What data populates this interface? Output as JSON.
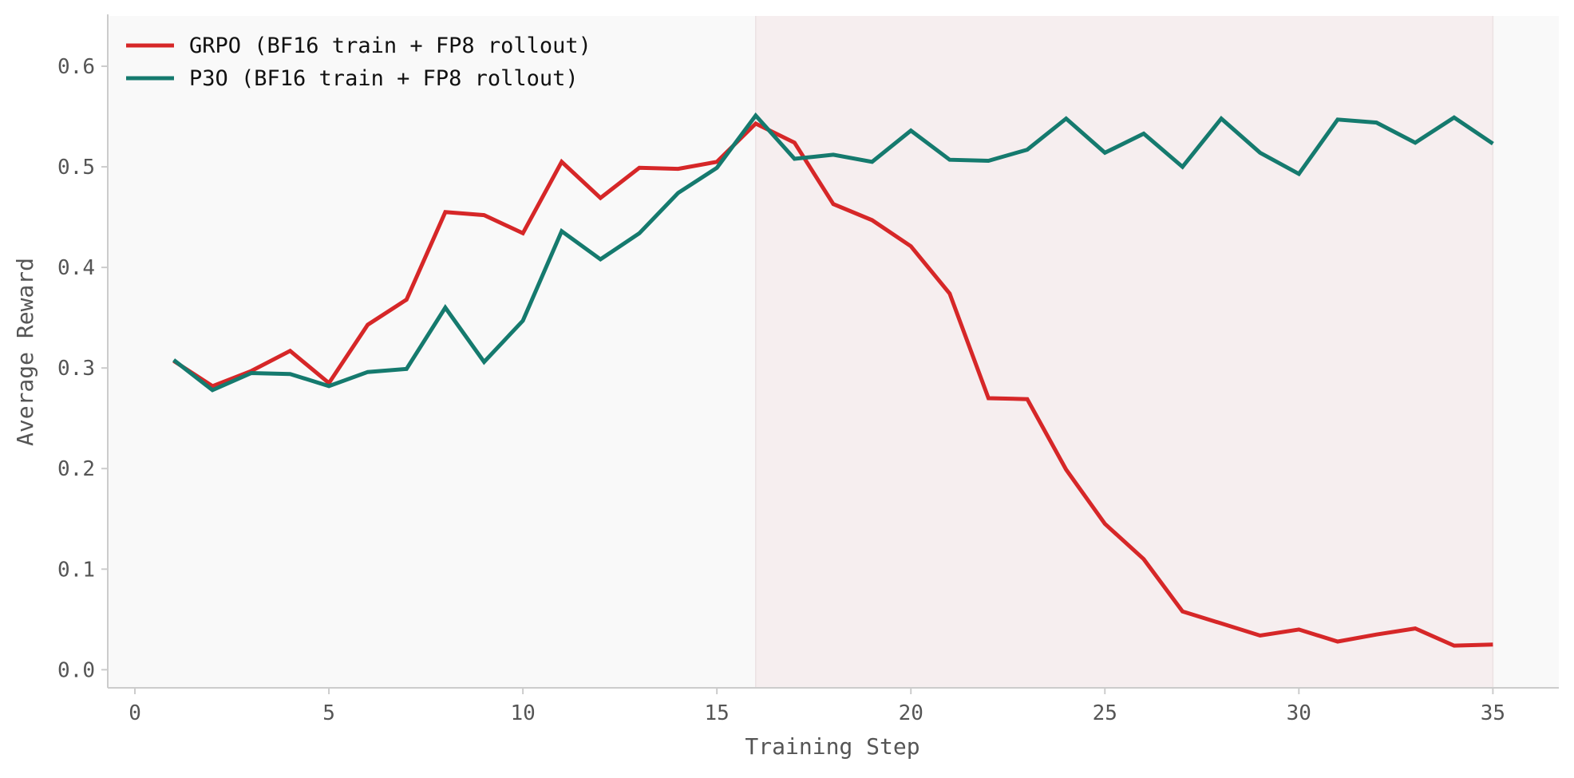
{
  "chart_data": {
    "type": "line",
    "title": "",
    "xlabel": "Training Step",
    "ylabel": "Average Reward",
    "xlim": [
      -0.7,
      36.7
    ],
    "ylim": [
      -0.018,
      0.65
    ],
    "xticks": [
      0,
      5,
      10,
      15,
      20,
      25,
      30,
      35
    ],
    "yticks": [
      0.0,
      0.1,
      0.2,
      0.3,
      0.4,
      0.5,
      0.6
    ],
    "ytick_labels": [
      "0.0",
      "0.1",
      "0.2",
      "0.3",
      "0.4",
      "0.5",
      "0.6"
    ],
    "grid": false,
    "legend_position": "top-left",
    "shaded_region": {
      "x_start": 16,
      "x_end": 35
    },
    "colors": {
      "plot_bg": "#f9f9f9",
      "shaded": "#f6eeef",
      "axis": "#cccccc",
      "tick_text": "#555555"
    },
    "x": [
      1,
      2,
      3,
      4,
      5,
      6,
      7,
      8,
      9,
      10,
      11,
      12,
      13,
      14,
      15,
      16,
      17,
      18,
      19,
      20,
      21,
      22,
      23,
      24,
      25,
      26,
      27,
      28,
      29,
      30,
      31,
      32,
      33,
      34,
      35
    ],
    "series": [
      {
        "name": "GRPO (BF16 train + FP8 rollout)",
        "color": "#d62728",
        "values": [
          0.307,
          0.282,
          0.297,
          0.317,
          0.285,
          0.343,
          0.368,
          0.455,
          0.452,
          0.434,
          0.505,
          0.469,
          0.499,
          0.498,
          0.505,
          0.543,
          0.524,
          0.463,
          0.447,
          0.421,
          0.374,
          0.27,
          0.269,
          0.199,
          0.145,
          0.11,
          0.058,
          0.046,
          0.034,
          0.04,
          0.028,
          0.035,
          0.041,
          0.024,
          0.025
        ]
      },
      {
        "name": "P3O (BF16 train + FP8 rollout)",
        "color": "#157a6e",
        "values": [
          0.308,
          0.278,
          0.295,
          0.294,
          0.282,
          0.296,
          0.299,
          0.36,
          0.306,
          0.347,
          0.436,
          0.408,
          0.434,
          0.474,
          0.499,
          0.551,
          0.508,
          0.512,
          0.505,
          0.536,
          0.507,
          0.506,
          0.517,
          0.548,
          0.514,
          0.533,
          0.5,
          0.548,
          0.514,
          0.493,
          0.547,
          0.544,
          0.524,
          0.549,
          0.523
        ]
      }
    ]
  }
}
